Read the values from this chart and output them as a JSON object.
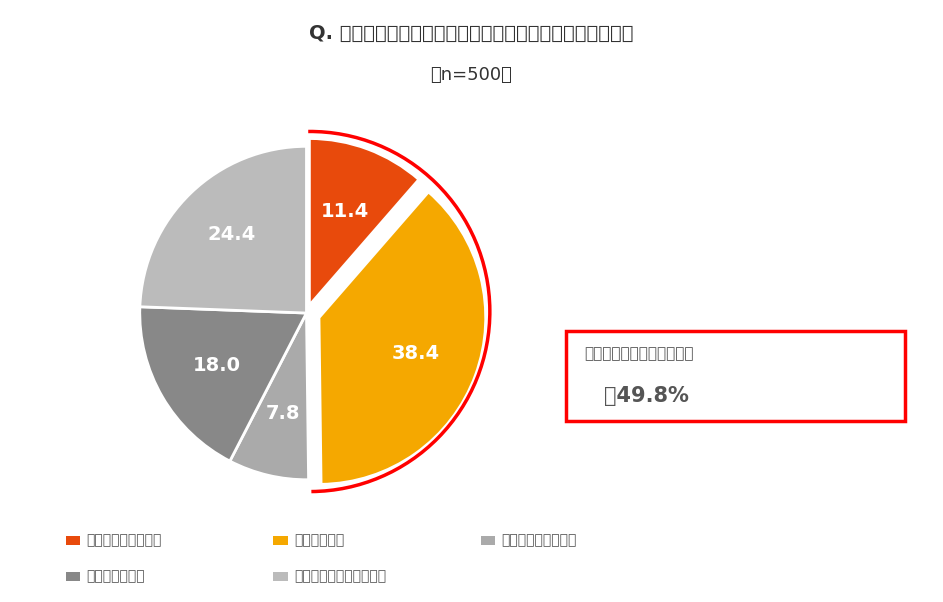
{
  "title": "Q. コロナ禀において、ポジティブな変化がありましたか。",
  "subtitle": "（n=500）",
  "values": [
    11.4,
    38.4,
    7.8,
    18.0,
    24.4
  ],
  "labels": [
    "かなり変化があった",
    "変化があった",
    "どちらともいえない",
    "変化はなかった",
    "まったく変化はなかった"
  ],
  "colors": [
    "#E84A0C",
    "#F5A800",
    "#AAAAAA",
    "#888888",
    "#BBBBBB"
  ],
  "explode": [
    0.05,
    0.08,
    0.0,
    0.0,
    0.0
  ],
  "startangle": 90,
  "annotation_line1": "ポジティブな変化があった",
  "annotation_line2": "＝49.8%",
  "background_color": "#ffffff",
  "label_values": [
    "11.4",
    "38.4",
    "7.8",
    "18.0",
    "24.4"
  ]
}
